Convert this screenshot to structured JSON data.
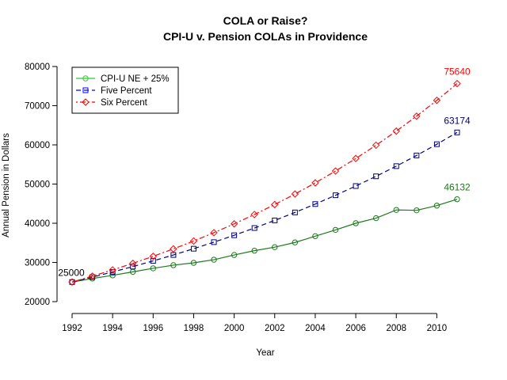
{
  "chart_data": {
    "type": "line",
    "title": "COLA or Raise?",
    "subtitle": "CPI-U v. Pension COLAs in Providence",
    "xlabel": "Year",
    "ylabel": "Annual Pension in Dollars",
    "xlim": [
      1992,
      2011
    ],
    "ylim": [
      20000,
      80000
    ],
    "x_ticks": [
      1992,
      1994,
      1996,
      1998,
      2000,
      2002,
      2004,
      2006,
      2008,
      2010
    ],
    "y_ticks": [
      20000,
      30000,
      40000,
      50000,
      60000,
      70000,
      80000
    ],
    "grid": false,
    "legend_position": "top-left",
    "x": [
      1992,
      1993,
      1994,
      1995,
      1996,
      1997,
      1998,
      1999,
      2000,
      2001,
      2002,
      2003,
      2004,
      2005,
      2006,
      2007,
      2008,
      2009,
      2010,
      2011
    ],
    "series": [
      {
        "name": "CPI-U NE + 25%",
        "color": "#1a7a1a",
        "legend_color": "#33cc33",
        "marker": "circle",
        "dash": "solid",
        "values": [
          25000,
          25900,
          26700,
          27600,
          28500,
          29300,
          29900,
          30700,
          31900,
          33000,
          33900,
          35100,
          36700,
          38300,
          40000,
          41300,
          43400,
          43300,
          44500,
          46132
        ],
        "end_label": "46132"
      },
      {
        "name": "Five Percent",
        "color": "#000080",
        "legend_color": "#0000ff",
        "marker": "square",
        "dash": "dashed",
        "values": [
          25000,
          26250,
          27563,
          28941,
          30388,
          31907,
          33502,
          35178,
          36936,
          38783,
          40722,
          42758,
          44896,
          47141,
          49498,
          51973,
          54572,
          57300,
          60165,
          63174
        ],
        "end_label": "63174"
      },
      {
        "name": "Six Percent",
        "color": "#ff0000",
        "legend_color": "#ff0000",
        "marker": "diamond",
        "dash": "dotdash",
        "values": [
          25000,
          26500,
          28090,
          29775,
          31562,
          33456,
          35463,
          37591,
          39846,
          42237,
          44771,
          47457,
          50305,
          53323,
          56522,
          59914,
          63508,
          67319,
          71358,
          75640
        ],
        "end_label": "75640"
      }
    ],
    "annotations": [
      {
        "text": "25000",
        "x": 1992,
        "y": 25000
      }
    ]
  }
}
